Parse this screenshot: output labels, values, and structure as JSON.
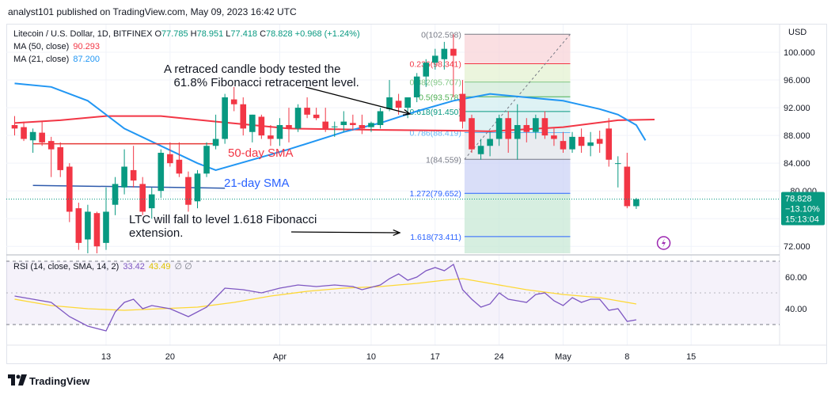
{
  "header": {
    "publisher": "analyst101 published on TradingView.com, May 09, 2023 16:42 UTC"
  },
  "legend": {
    "symbol": "Litecoin / U.S. Dollar, 1D, BITFINEX",
    "open_label": "O",
    "open": "77.785",
    "high_label": "H",
    "high": "78.951",
    "low_label": "L",
    "low": "77.418",
    "close_label": "C",
    "close": "78.828",
    "change": "+0.968 (+1.24%)",
    "ma50_label": "MA (50, close)",
    "ma50_value": "90.293",
    "ma21_label": "MA (21, close)",
    "ma21_value": "87.200",
    "rsi_label": "RSI (14, close, SMA, 14, 2)",
    "rsi_value": "33.42",
    "rsi_ma_value": "43.49",
    "rsi_extra": "∅ ∅"
  },
  "annotations": {
    "retrace_note": "A retraced candle body tested the\n   61.8% Fibonacci retracement level.",
    "sma50_label": "50-day SMA",
    "sma21_label": "21-day SMA",
    "fall_note": "LTC will fall to level 1.618 Fibonacci\nextension."
  },
  "footer": {
    "brand": "TradingView"
  },
  "colors": {
    "up": "#089981",
    "down": "#f23645",
    "ma50": "#f23645",
    "ma21": "#2196f3",
    "rsi": "#7e57c2",
    "rsi_ma": "#fdd835",
    "grid": "#f0f3fa"
  },
  "chart_data": {
    "type": "candlestick",
    "title": "Litecoin / U.S. Dollar, 1D, BITFINEX",
    "y_axis": {
      "unit": "USD",
      "ticks": [
        72.0,
        76.0,
        80.0,
        84.0,
        88.0,
        92.0,
        96.0,
        100.0
      ],
      "tick_labels": [
        "72.000",
        "76.000",
        "80.000",
        "84.000",
        "88.000",
        "92.000",
        "96.000",
        "100.000"
      ],
      "range": [
        71.0,
        104.0
      ]
    },
    "x_axis": {
      "labels": [
        "13",
        "20",
        "Apr",
        "10",
        "17",
        "24",
        "May",
        "8",
        "15"
      ],
      "label_index": [
        10,
        17,
        29,
        39,
        46,
        53,
        60,
        67,
        74
      ]
    },
    "last_price": {
      "value": "78.828",
      "change": "−13.10%",
      "countdown": "15:13:04"
    },
    "candles": [
      [
        89.5,
        90.8,
        88.0,
        89.0
      ],
      [
        89.2,
        90.0,
        87.2,
        87.5
      ],
      [
        87.3,
        89.0,
        85.5,
        88.5
      ],
      [
        88.4,
        90.0,
        86.5,
        87.0
      ],
      [
        87.2,
        87.8,
        82.0,
        86.0
      ],
      [
        86.3,
        87.0,
        82.0,
        83.0
      ],
      [
        83.5,
        84.0,
        75.5,
        77.0
      ],
      [
        77.5,
        78.3,
        71.5,
        72.5
      ],
      [
        73.0,
        78.0,
        71.0,
        77.0
      ],
      [
        76.8,
        77.0,
        71.0,
        72.0
      ],
      [
        72.5,
        80.5,
        71.5,
        77.0
      ],
      [
        78.0,
        82.0,
        76.5,
        81.0
      ],
      [
        80.5,
        86.0,
        79.5,
        83.5
      ],
      [
        83.0,
        86.5,
        80.5,
        81.5
      ],
      [
        81.0,
        82.0,
        76.5,
        77.0
      ],
      [
        77.5,
        80.5,
        76.0,
        79.5
      ],
      [
        80.0,
        86.0,
        79.0,
        85.5
      ],
      [
        85.3,
        87.0,
        83.5,
        84.0
      ],
      [
        84.5,
        87.0,
        82.0,
        82.5
      ],
      [
        82.0,
        82.8,
        77.0,
        78.0
      ],
      [
        78.5,
        83.0,
        77.5,
        82.5
      ],
      [
        82.5,
        87.0,
        82.0,
        86.5
      ],
      [
        86.5,
        91.0,
        86.0,
        87.5
      ],
      [
        87.5,
        94.0,
        86.8,
        93.5
      ],
      [
        93.2,
        95.0,
        91.5,
        92.5
      ],
      [
        92.5,
        93.5,
        88.0,
        89.0
      ],
      [
        88.5,
        91.0,
        87.0,
        91.0
      ],
      [
        90.7,
        91.0,
        87.5,
        88.0
      ],
      [
        88.0,
        89.5,
        86.5,
        87.5
      ],
      [
        87.5,
        90.5,
        86.5,
        89.5
      ],
      [
        89.5,
        92.0,
        87.0,
        89.0
      ],
      [
        89.0,
        92.5,
        88.5,
        92.0
      ],
      [
        92.0,
        93.5,
        90.5,
        91.0
      ],
      [
        91.0,
        92.0,
        90.2,
        90.5
      ],
      [
        90.0,
        92.0,
        88.5,
        89.0
      ],
      [
        89.2,
        90.0,
        87.8,
        89.3
      ],
      [
        89.5,
        91.5,
        88.5,
        90.0
      ],
      [
        89.8,
        91.0,
        88.7,
        89.5
      ],
      [
        89.5,
        91.0,
        88.2,
        89.0
      ],
      [
        89.2,
        90.0,
        88.5,
        89.8
      ],
      [
        89.5,
        92.0,
        89.0,
        91.5
      ],
      [
        91.8,
        96.0,
        91.5,
        93.5
      ],
      [
        93.0,
        94.0,
        91.0,
        92.0
      ],
      [
        92.0,
        93.5,
        90.5,
        93.5
      ],
      [
        93.5,
        97.0,
        92.8,
        96.5
      ],
      [
        96.5,
        99.0,
        95.0,
        98.5
      ],
      [
        98.5,
        100.5,
        97.5,
        99.5
      ],
      [
        99.0,
        101.5,
        97.5,
        100.5
      ],
      [
        100.5,
        102.6,
        93.5,
        99.5
      ],
      [
        94.0,
        96.0,
        89.0,
        90.0
      ],
      [
        90.5,
        91.0,
        85.5,
        86.0
      ],
      [
        85.3,
        87.5,
        84.5,
        86.5
      ],
      [
        86.5,
        88.5,
        85.0,
        87.5
      ],
      [
        87.5,
        91.0,
        86.5,
        90.5
      ],
      [
        90.5,
        91.5,
        85.5,
        87.5
      ],
      [
        87.5,
        92.5,
        84.5,
        89.5
      ],
      [
        89.5,
        90.5,
        87.0,
        88.5
      ],
      [
        88.5,
        91.0,
        87.5,
        90.5
      ],
      [
        90.5,
        91.5,
        87.5,
        88.0
      ],
      [
        88.0,
        89.0,
        86.5,
        87.5
      ],
      [
        87.2,
        88.5,
        85.5,
        86.0
      ],
      [
        86.0,
        88.5,
        85.5,
        87.8
      ],
      [
        87.8,
        89.0,
        85.5,
        86.5
      ],
      [
        86.5,
        88.5,
        85.0,
        87.0
      ],
      [
        87.5,
        88.7,
        85.5,
        86.8
      ],
      [
        89.0,
        90.5,
        83.5,
        84.5
      ],
      [
        84.0,
        85.0,
        80.5,
        84.0
      ],
      [
        83.5,
        85.5,
        77.5,
        77.8
      ],
      [
        77.8,
        79.0,
        77.4,
        78.8
      ]
    ],
    "ma50": {
      "name": "50-day SMA",
      "points": [
        [
          0,
          89.8
        ],
        [
          5,
          90.2
        ],
        [
          10,
          90.8
        ],
        [
          16,
          90.8
        ],
        [
          22,
          90.0
        ],
        [
          30,
          89.0
        ],
        [
          40,
          88.8
        ],
        [
          48,
          88.7
        ],
        [
          52,
          88.6
        ],
        [
          60,
          89.2
        ],
        [
          66,
          90.2
        ],
        [
          70,
          90.3
        ]
      ]
    },
    "ma21": {
      "name": "21-day SMA",
      "points": [
        [
          0,
          95.5
        ],
        [
          4,
          95.0
        ],
        [
          8,
          93.0
        ],
        [
          12,
          89.0
        ],
        [
          16,
          86.5
        ],
        [
          20,
          84.0
        ],
        [
          22,
          83.0
        ],
        [
          26,
          84.5
        ],
        [
          30,
          86.0
        ],
        [
          36,
          88.5
        ],
        [
          40,
          89.8
        ],
        [
          44,
          91.5
        ],
        [
          48,
          93.0
        ],
        [
          52,
          94.0
        ],
        [
          56,
          93.5
        ],
        [
          60,
          93.0
        ],
        [
          64,
          91.8
        ],
        [
          66,
          91.0
        ],
        [
          68,
          89.5
        ],
        [
          69,
          87.3
        ]
      ]
    },
    "drawn_lines": [
      {
        "name": "50-day SMA",
        "points": [
          [
            2,
            86.8
          ],
          [
            22,
            86.8
          ]
        ]
      },
      {
        "name": "21-day SMA",
        "points": [
          [
            2,
            80.8
          ],
          [
            23,
            80.4
          ]
        ]
      }
    ],
    "fibonacci": {
      "start_index": 48,
      "end_index": 60,
      "levels": [
        {
          "ratio": "0",
          "price": 102.598,
          "label": "0(102.598)"
        },
        {
          "ratio": "0.236",
          "price": 98.341,
          "label": "0.236(98.341)"
        },
        {
          "ratio": "0.382",
          "price": 95.707,
          "label": "0.382(95.707)"
        },
        {
          "ratio": "0.5",
          "price": 93.578,
          "label": "0.5(93.578)"
        },
        {
          "ratio": "0.618",
          "price": 91.45,
          "label": "0.618(91.450)"
        },
        {
          "ratio": "0.786",
          "price": 88.419,
          "label": "0.786(88.419)"
        },
        {
          "ratio": "1",
          "price": 84.559,
          "label": "1(84.559)"
        },
        {
          "ratio": "1.272",
          "price": 79.652,
          "label": "1.272(79.652)"
        },
        {
          "ratio": "1.618",
          "price": 73.411,
          "label": "1.618(73.411)"
        }
      ],
      "bands": [
        "#f8d4d8",
        "#e4f2d2",
        "#d2ebd8",
        "#d3eef0",
        "#d3eef0",
        "#e1e5eb",
        "#ccd3f5",
        "#c8e8d6",
        "#c8e8d6"
      ],
      "line_colors": [
        "#787b86",
        "#f23645",
        "#81c784",
        "#4caf50",
        "#089981",
        "#64b5f6",
        "#787b86",
        "#2962ff",
        "#2962ff"
      ]
    },
    "rsi": {
      "y_axis": {
        "ticks": [
          40.0,
          60.0
        ],
        "tick_labels": [
          "40.00",
          "60.00"
        ],
        "range": [
          17.0,
          74.0
        ],
        "bands": [
          30,
          70
        ]
      },
      "rsi_line": [
        [
          0,
          48
        ],
        [
          2,
          46
        ],
        [
          4,
          44
        ],
        [
          6,
          35
        ],
        [
          8,
          29
        ],
        [
          10,
          26
        ],
        [
          11,
          38
        ],
        [
          12,
          44
        ],
        [
          13,
          46
        ],
        [
          14,
          40
        ],
        [
          15,
          42
        ],
        [
          17,
          40
        ],
        [
          19,
          35
        ],
        [
          21,
          41
        ],
        [
          22,
          47
        ],
        [
          23,
          53
        ],
        [
          25,
          52
        ],
        [
          27,
          50
        ],
        [
          29,
          53
        ],
        [
          31,
          55
        ],
        [
          33,
          54
        ],
        [
          35,
          55
        ],
        [
          37,
          54
        ],
        [
          38,
          52
        ],
        [
          40,
          55
        ],
        [
          41,
          59
        ],
        [
          42,
          62
        ],
        [
          43,
          58
        ],
        [
          44,
          60
        ],
        [
          45,
          64
        ],
        [
          46,
          66
        ],
        [
          47,
          64
        ],
        [
          48,
          68
        ],
        [
          49,
          52
        ],
        [
          50,
          46
        ],
        [
          51,
          41
        ],
        [
          52,
          43
        ],
        [
          53,
          50
        ],
        [
          54,
          46
        ],
        [
          55,
          45
        ],
        [
          56,
          44
        ],
        [
          57,
          49
        ],
        [
          58,
          50
        ],
        [
          59,
          45
        ],
        [
          60,
          42
        ],
        [
          61,
          47
        ],
        [
          62,
          44
        ],
        [
          63,
          46
        ],
        [
          64,
          46
        ],
        [
          65,
          39
        ],
        [
          66,
          40
        ],
        [
          67,
          32
        ],
        [
          68,
          33
        ]
      ],
      "rsi_ma_line": [
        [
          0,
          46
        ],
        [
          4,
          42
        ],
        [
          8,
          40
        ],
        [
          12,
          39
        ],
        [
          16,
          40
        ],
        [
          20,
          41
        ],
        [
          24,
          44
        ],
        [
          28,
          48
        ],
        [
          32,
          51
        ],
        [
          36,
          53
        ],
        [
          40,
          54
        ],
        [
          44,
          56
        ],
        [
          47,
          58
        ],
        [
          49,
          59
        ],
        [
          52,
          56
        ],
        [
          56,
          52
        ],
        [
          60,
          49
        ],
        [
          64,
          47
        ],
        [
          68,
          43
        ]
      ]
    }
  }
}
